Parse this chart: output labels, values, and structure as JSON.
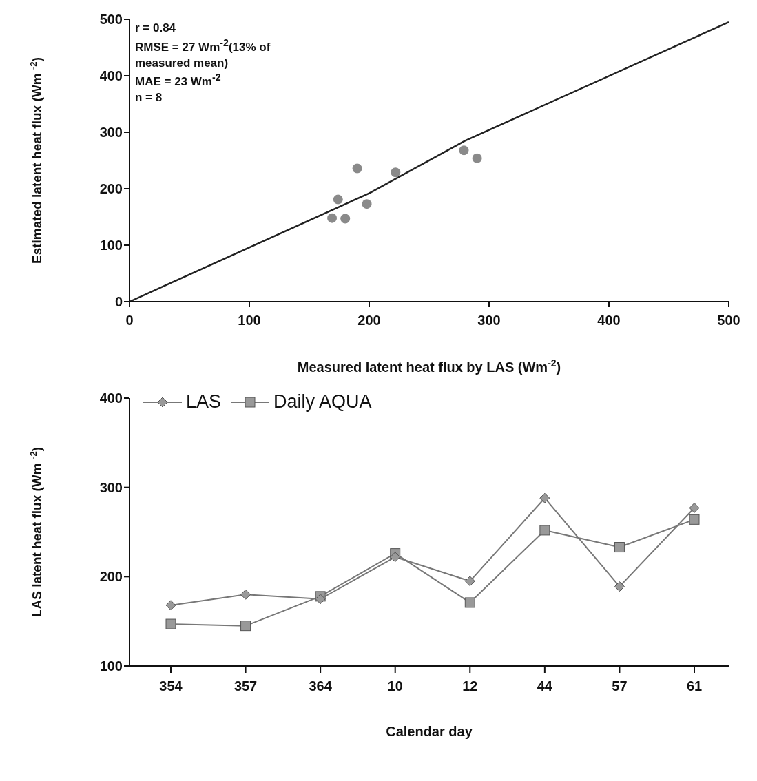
{
  "chart_data": [
    {
      "type": "scatter",
      "xlabel": "Measured latent heat flux by LAS (Wm$^{-2}$)",
      "ylabel": "Estimated latent heat flux (Wm $^{-2}$)",
      "annotations": [
        "r = 0.84",
        "RMSE = 27 Wm$^{-2}$(13% of measured mean)",
        "MAE = 23  Wm$^{-2}$",
        "n = 8"
      ],
      "xlim": [
        0,
        500
      ],
      "xticks": [
        0,
        100,
        200,
        300,
        400,
        500
      ],
      "ylim": [
        0,
        500
      ],
      "yticks": [
        0,
        100,
        200,
        300,
        400,
        500
      ],
      "grid": false,
      "legend": false,
      "series": [
        {
          "marker": "circle",
          "color": "#8a8a8a",
          "x": [
            190,
            222,
            174,
            198,
            169,
            180,
            279,
            290
          ],
          "values": [
            236,
            229,
            181,
            173,
            148,
            147,
            268,
            254
          ]
        },
        {
          "type": "line",
          "marker": "none",
          "color": "#222222",
          "x": [
            0,
            200,
            280,
            500
          ],
          "values": [
            0,
            192,
            285,
            495
          ]
        }
      ]
    },
    {
      "type": "line",
      "xlabel": "Calendar day",
      "ylabel": "LAS latent heat flux (Wm $^{-2}$)",
      "categories": [
        "354",
        "357",
        "364",
        "10",
        "12",
        "44",
        "57",
        "61"
      ],
      "ylim": [
        100,
        400
      ],
      "yticks": [
        100,
        200,
        300,
        400
      ],
      "grid": false,
      "legend": "top left",
      "series": [
        {
          "name": "LAS",
          "marker": "diamond",
          "color": "#777777",
          "values": [
            168,
            180,
            175,
            222,
            195,
            288,
            189,
            277
          ]
        },
        {
          "name": "Daily AQUA",
          "marker": "square",
          "color": "#777777",
          "values": [
            147,
            145,
            178,
            226,
            171,
            252,
            233,
            264
          ]
        }
      ]
    }
  ]
}
